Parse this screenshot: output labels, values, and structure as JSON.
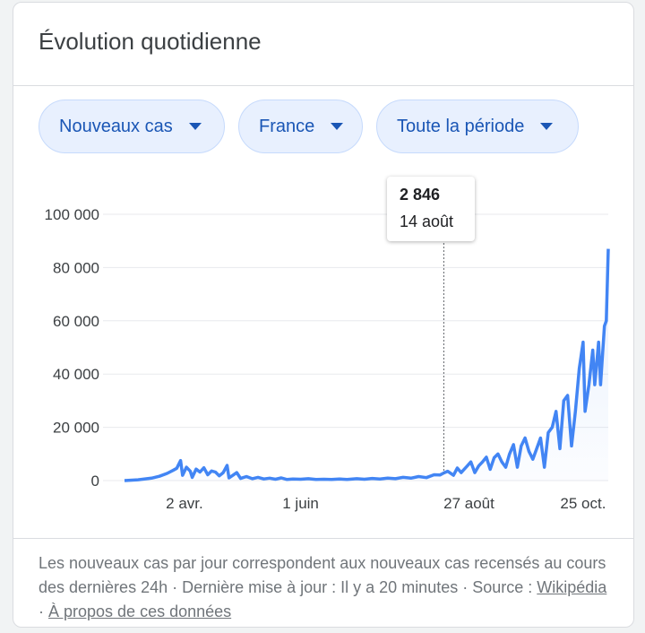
{
  "card": {
    "title": "Évolution quotidienne"
  },
  "filters": [
    {
      "label": "Nouveaux cas"
    },
    {
      "label": "France"
    },
    {
      "label": "Toute la période"
    }
  ],
  "tooltip": {
    "value": "2 846",
    "date": "14 août"
  },
  "footer": {
    "text1": "Les nouveaux cas par jour correspondent aux nouveaux cas recensés au cours des dernières 24h · Dernière mise à jour : Il y a 20 minutes",
    "sep": " · ",
    "source_prefix": "Source : ",
    "source_link": "Wikipédia",
    "about_link": "À propos de ces données"
  },
  "colors": {
    "line": "#4285f4",
    "chip_bg": "#e8f0fe",
    "chip_text": "#1a56b5"
  },
  "chart_data": {
    "type": "line",
    "title": "",
    "xlabel": "",
    "ylabel": "",
    "ylim": [
      0,
      100000
    ],
    "yticks": [
      0,
      20000,
      40000,
      60000,
      80000,
      100000
    ],
    "ytick_labels": [
      "0",
      "20 000",
      "40 000",
      "60 000",
      "80 000",
      "100 000"
    ],
    "xticks": [
      "2020-04-02",
      "2020-06-01",
      "2020-08-27",
      "2020-10-25"
    ],
    "xtick_labels": [
      "2 avr.",
      "1 juin",
      "27 août",
      "25 oct."
    ],
    "xlim": [
      "2020-03-02",
      "2020-11-07"
    ],
    "grid": true,
    "highlight": {
      "x": "2020-08-14",
      "y": 2846
    },
    "series": [
      {
        "values": [
          [
            "2020-03-02",
            0
          ],
          [
            "2020-03-09",
            300
          ],
          [
            "2020-03-16",
            900
          ],
          [
            "2020-03-20",
            1600
          ],
          [
            "2020-03-24",
            2700
          ],
          [
            "2020-03-27",
            3800
          ],
          [
            "2020-03-29",
            4600
          ],
          [
            "2020-03-31",
            7500
          ],
          [
            "2020-04-01",
            2000
          ],
          [
            "2020-04-03",
            5000
          ],
          [
            "2020-04-05",
            3500
          ],
          [
            "2020-04-06",
            1200
          ],
          [
            "2020-04-08",
            4300
          ],
          [
            "2020-04-10",
            3200
          ],
          [
            "2020-04-12",
            4800
          ],
          [
            "2020-04-14",
            2200
          ],
          [
            "2020-04-16",
            3600
          ],
          [
            "2020-04-18",
            3200
          ],
          [
            "2020-04-20",
            1800
          ],
          [
            "2020-04-22",
            3000
          ],
          [
            "2020-04-24",
            5700
          ],
          [
            "2020-04-25",
            1000
          ],
          [
            "2020-04-27",
            2000
          ],
          [
            "2020-04-29",
            3000
          ],
          [
            "2020-05-01",
            800
          ],
          [
            "2020-05-04",
            1500
          ],
          [
            "2020-05-07",
            700
          ],
          [
            "2020-05-10",
            1200
          ],
          [
            "2020-05-13",
            600
          ],
          [
            "2020-05-16",
            900
          ],
          [
            "2020-05-19",
            500
          ],
          [
            "2020-05-22",
            1000
          ],
          [
            "2020-05-25",
            400
          ],
          [
            "2020-05-28",
            600
          ],
          [
            "2020-06-01",
            500
          ],
          [
            "2020-06-05",
            700
          ],
          [
            "2020-06-09",
            400
          ],
          [
            "2020-06-13",
            500
          ],
          [
            "2020-06-17",
            450
          ],
          [
            "2020-06-21",
            600
          ],
          [
            "2020-06-25",
            450
          ],
          [
            "2020-06-30",
            700
          ],
          [
            "2020-07-04",
            500
          ],
          [
            "2020-07-08",
            800
          ],
          [
            "2020-07-12",
            600
          ],
          [
            "2020-07-16",
            900
          ],
          [
            "2020-07-20",
            700
          ],
          [
            "2020-07-24",
            1200
          ],
          [
            "2020-07-28",
            900
          ],
          [
            "2020-08-01",
            1500
          ],
          [
            "2020-08-05",
            1100
          ],
          [
            "2020-08-09",
            2200
          ],
          [
            "2020-08-12",
            2100
          ],
          [
            "2020-08-14",
            2846
          ],
          [
            "2020-08-16",
            3500
          ],
          [
            "2020-08-19",
            2000
          ],
          [
            "2020-08-21",
            4700
          ],
          [
            "2020-08-23",
            3000
          ],
          [
            "2020-08-26",
            5400
          ],
          [
            "2020-08-28",
            7000
          ],
          [
            "2020-08-30",
            3000
          ],
          [
            "2020-09-01",
            5500
          ],
          [
            "2020-09-03",
            7000
          ],
          [
            "2020-09-05",
            8800
          ],
          [
            "2020-09-07",
            4200
          ],
          [
            "2020-09-09",
            8600
          ],
          [
            "2020-09-11",
            10000
          ],
          [
            "2020-09-13",
            7000
          ],
          [
            "2020-09-15",
            5000
          ],
          [
            "2020-09-17",
            10000
          ],
          [
            "2020-09-19",
            13500
          ],
          [
            "2020-09-21",
            5000
          ],
          [
            "2020-09-23",
            13000
          ],
          [
            "2020-09-25",
            16000
          ],
          [
            "2020-09-27",
            11000
          ],
          [
            "2020-09-29",
            8000
          ],
          [
            "2020-10-01",
            12000
          ],
          [
            "2020-10-03",
            16000
          ],
          [
            "2020-10-05",
            5000
          ],
          [
            "2020-10-07",
            18000
          ],
          [
            "2020-10-09",
            20000
          ],
          [
            "2020-10-11",
            26000
          ],
          [
            "2020-10-13",
            12000
          ],
          [
            "2020-10-15",
            30000
          ],
          [
            "2020-10-17",
            32000
          ],
          [
            "2020-10-19",
            13000
          ],
          [
            "2020-10-21",
            26000
          ],
          [
            "2020-10-23",
            42000
          ],
          [
            "2020-10-25",
            52000
          ],
          [
            "2020-10-26",
            26000
          ],
          [
            "2020-10-28",
            36000
          ],
          [
            "2020-10-30",
            49000
          ],
          [
            "2020-10-31",
            36000
          ],
          [
            "2020-11-02",
            52000
          ],
          [
            "2020-11-03",
            36000
          ],
          [
            "2020-11-05",
            58000
          ],
          [
            "2020-11-06",
            60000
          ],
          [
            "2020-11-07",
            87000
          ]
        ]
      }
    ]
  }
}
